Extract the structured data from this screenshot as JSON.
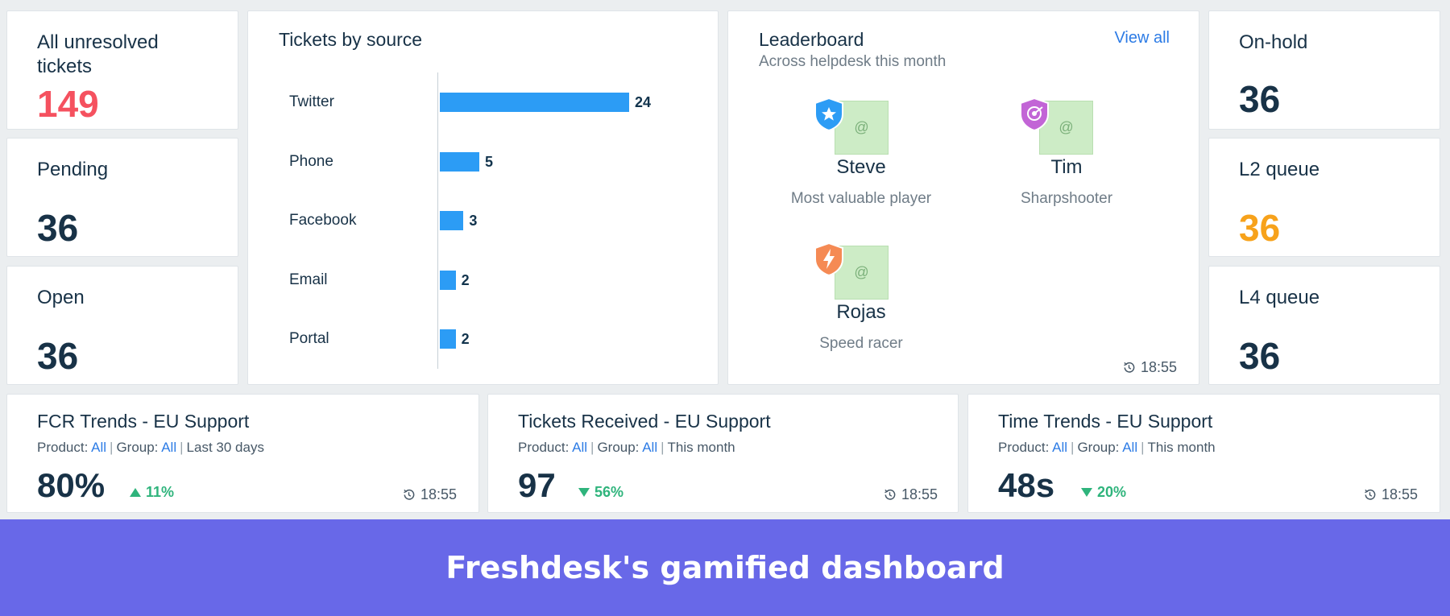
{
  "stats_left": [
    {
      "label": "All unresolved tickets",
      "value": "149",
      "color": "#f5515f"
    },
    {
      "label": "Pending",
      "value": "36",
      "color": "#183247"
    },
    {
      "label": "Open",
      "value": "36",
      "color": "#183247"
    }
  ],
  "stats_right": [
    {
      "label": "On-hold",
      "value": "36",
      "color": "#183247"
    },
    {
      "label": "L2 queue",
      "value": "36",
      "color": "#f7a21b"
    },
    {
      "label": "L4 queue",
      "value": "36",
      "color": "#183247"
    }
  ],
  "tickets_by_source": {
    "title": "Tickets by source",
    "chart_data": {
      "type": "bar",
      "categories": [
        "Twitter",
        "Phone",
        "Facebook",
        "Email",
        "Portal"
      ],
      "values": [
        24,
        5,
        3,
        2,
        2
      ],
      "color": "#2c9cf5"
    }
  },
  "leaderboard": {
    "title": "Leaderboard",
    "subtitle": "Across helpdesk this month",
    "view_all": "View all",
    "avatar_symbol": "@",
    "time": "18:55",
    "entries": [
      {
        "name": "Steve",
        "title": "Most valuable player",
        "badge": "star-shield-icon",
        "badge_color": "#2c9cf5"
      },
      {
        "name": "Tim",
        "title": "Sharpshooter",
        "badge": "target-shield-icon",
        "badge_color": "#c265d6"
      },
      {
        "name": "Rojas",
        "title": "Speed racer",
        "badge": "bolt-shield-icon",
        "badge_color": "#f58a54"
      }
    ]
  },
  "trends": [
    {
      "title": "FCR Trends - EU Support",
      "product_label": "Product:",
      "product": "All",
      "group_label": "Group:",
      "group": "All",
      "period": "Last 30 days",
      "value": "80%",
      "change": "11%",
      "direction": "up",
      "time": "18:55"
    },
    {
      "title": "Tickets Received - EU Support",
      "product_label": "Product:",
      "product": "All",
      "group_label": "Group:",
      "group": "All",
      "period": "This month",
      "value": "97",
      "change": "56%",
      "direction": "down",
      "time": "18:55"
    },
    {
      "title": "Time Trends - EU Support",
      "product_label": "Product:",
      "product": "All",
      "group_label": "Group:",
      "group": "All",
      "period": "This month",
      "value": "48s",
      "change": "20%",
      "direction": "down",
      "time": "18:55"
    }
  ],
  "caption": "Freshdesk's gamified dashboard"
}
